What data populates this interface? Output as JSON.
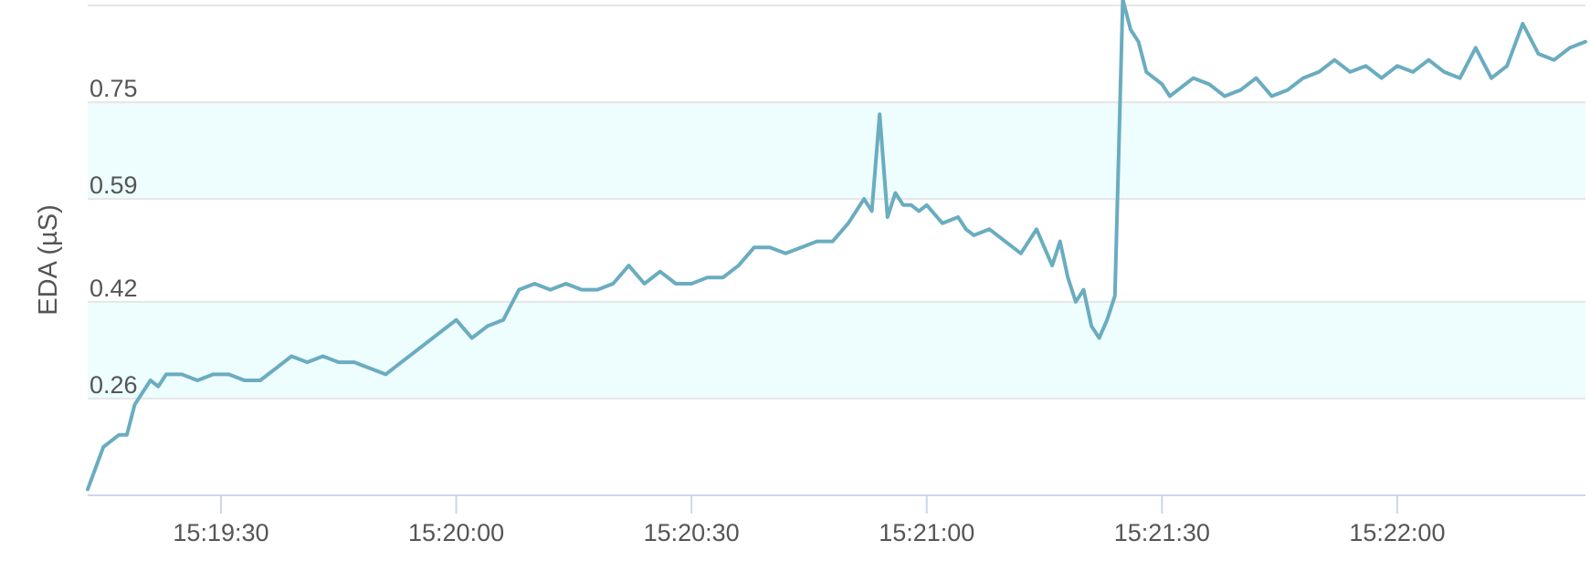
{
  "chart_data": {
    "type": "line",
    "title": "",
    "ylabel": "EDA (µS)",
    "xlabel": "",
    "ylim": [
      0.1,
      0.91
    ],
    "yticks": [
      0.26,
      0.42,
      0.59,
      0.75
    ],
    "ytick_labels": [
      "0.26",
      "0.42",
      "0.59",
      "0.75"
    ],
    "xlim": [
      "15:19:13",
      "15:22:24"
    ],
    "xticks": [
      "15:19:30",
      "15:20:00",
      "15:20:30",
      "15:21:00",
      "15:21:30",
      "15:22:00"
    ],
    "xtick_labels": [
      "15:19:30",
      "15:20:00",
      "15:20:30",
      "15:21:00",
      "15:21:30",
      "15:22:00"
    ],
    "bands": [
      {
        "from": 0.26,
        "to": 0.42,
        "color": "#eefdfd"
      },
      {
        "from": 0.59,
        "to": 0.75,
        "color": "#eefdfd"
      }
    ],
    "grid": true,
    "legend": "none",
    "line_color": "#6aacc0",
    "series": [
      {
        "x": [
          "15:19:13",
          "15:19:15",
          "15:19:16",
          "15:19:17",
          "15:19:18",
          "15:19:19",
          "15:19:20",
          "15:19:21",
          "15:19:22",
          "15:19:23",
          "15:19:25",
          "15:19:27",
          "15:19:29",
          "15:19:31",
          "15:19:33",
          "15:19:35",
          "15:19:37",
          "15:19:39",
          "15:19:41",
          "15:19:43",
          "15:19:45",
          "15:19:47",
          "15:19:49",
          "15:19:51",
          "15:19:53",
          "15:19:55",
          "15:19:57",
          "15:20:00",
          "15:20:02",
          "15:20:04",
          "15:20:06",
          "15:20:08",
          "15:20:10",
          "15:20:12",
          "15:20:14",
          "15:20:16",
          "15:20:18",
          "15:20:20",
          "15:20:22",
          "15:20:24",
          "15:20:26",
          "15:20:28",
          "15:20:30",
          "15:20:32",
          "15:20:34",
          "15:20:36",
          "15:20:38",
          "15:20:40",
          "15:20:42",
          "15:20:44",
          "15:20:46",
          "15:20:48",
          "15:20:50",
          "15:20:52",
          "15:20:53",
          "15:20:54",
          "15:20:55",
          "15:20:56",
          "15:20:57",
          "15:20:58",
          "15:20:59",
          "15:21:00",
          "15:21:02",
          "15:21:04",
          "15:21:05",
          "15:21:06",
          "15:21:08",
          "15:21:10",
          "15:21:12",
          "15:21:14",
          "15:21:15",
          "15:21:16",
          "15:21:17",
          "15:21:18",
          "15:21:19",
          "15:21:20",
          "15:21:21",
          "15:21:22",
          "15:21:23",
          "15:21:24",
          "15:21:25",
          "15:21:26",
          "15:21:27",
          "15:21:28",
          "15:21:30",
          "15:21:31",
          "15:21:32",
          "15:21:34",
          "15:21:36",
          "15:21:38",
          "15:21:40",
          "15:21:42",
          "15:21:44",
          "15:21:46",
          "15:21:48",
          "15:21:50",
          "15:21:52",
          "15:21:54",
          "15:21:56",
          "15:21:58",
          "15:22:00",
          "15:22:02",
          "15:22:04",
          "15:22:06",
          "15:22:08",
          "15:22:10",
          "15:22:12",
          "15:22:14",
          "15:22:16",
          "15:22:18",
          "15:22:20",
          "15:22:22",
          "15:22:24"
        ],
        "y": [
          0.11,
          0.18,
          0.19,
          0.2,
          0.2,
          0.25,
          0.27,
          0.29,
          0.28,
          0.3,
          0.3,
          0.29,
          0.3,
          0.3,
          0.29,
          0.29,
          0.31,
          0.33,
          0.32,
          0.33,
          0.32,
          0.32,
          0.31,
          0.3,
          0.32,
          0.34,
          0.36,
          0.39,
          0.36,
          0.38,
          0.39,
          0.44,
          0.45,
          0.44,
          0.45,
          0.44,
          0.44,
          0.45,
          0.48,
          0.45,
          0.47,
          0.45,
          0.45,
          0.46,
          0.46,
          0.48,
          0.51,
          0.51,
          0.5,
          0.51,
          0.52,
          0.52,
          0.55,
          0.59,
          0.57,
          0.73,
          0.56,
          0.6,
          0.58,
          0.58,
          0.57,
          0.58,
          0.55,
          0.56,
          0.54,
          0.53,
          0.54,
          0.52,
          0.5,
          0.54,
          0.51,
          0.48,
          0.52,
          0.46,
          0.42,
          0.44,
          0.38,
          0.36,
          0.39,
          0.43,
          0.92,
          0.87,
          0.85,
          0.8,
          0.78,
          0.76,
          0.77,
          0.79,
          0.78,
          0.76,
          0.77,
          0.79,
          0.76,
          0.77,
          0.79,
          0.8,
          0.82,
          0.8,
          0.81,
          0.79,
          0.81,
          0.8,
          0.82,
          0.8,
          0.79,
          0.84,
          0.79,
          0.81,
          0.88,
          0.83,
          0.82,
          0.84,
          0.85
        ]
      }
    ]
  }
}
